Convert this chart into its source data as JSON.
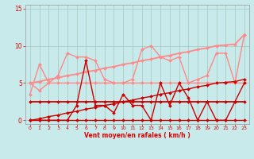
{
  "xlabel": "Vent moyen/en rafales ( km/h )",
  "xlim": [
    -0.5,
    23.5
  ],
  "ylim": [
    -0.5,
    15.5
  ],
  "yticks": [
    0,
    5,
    10,
    15
  ],
  "xticks": [
    0,
    1,
    2,
    3,
    4,
    5,
    6,
    7,
    8,
    9,
    10,
    11,
    12,
    13,
    14,
    15,
    16,
    17,
    18,
    19,
    20,
    21,
    22,
    23
  ],
  "bg_color": "#c8eaea",
  "grid_color": "#a0c8c0",
  "text_color": "#dd0000",
  "series": [
    {
      "x": [
        0,
        1,
        2,
        3,
        4,
        5,
        6,
        7,
        8,
        9,
        10,
        11,
        12,
        13,
        14,
        15,
        16,
        17,
        18,
        19,
        20,
        21,
        22,
        23
      ],
      "y": [
        0,
        0,
        0,
        0,
        0,
        0,
        0,
        0,
        0,
        0,
        0,
        0,
        0,
        0,
        0,
        0,
        0,
        0,
        0,
        0,
        0,
        0,
        0,
        0
      ],
      "color": "#cc0000",
      "linewidth": 1.0,
      "markersize": 2.0,
      "zorder": 3
    },
    {
      "x": [
        0,
        1,
        2,
        3,
        4,
        5,
        6,
        7,
        8,
        9,
        10,
        11,
        12,
        13,
        14,
        15,
        16,
        17,
        18,
        19,
        20,
        21,
        22,
        23
      ],
      "y": [
        2.5,
        2.5,
        2.5,
        2.5,
        2.5,
        2.5,
        2.5,
        2.5,
        2.5,
        2.5,
        2.5,
        2.5,
        2.5,
        2.5,
        2.5,
        2.5,
        2.5,
        2.5,
        2.5,
        2.5,
        2.5,
        2.5,
        2.5,
        2.5
      ],
      "color": "#cc0000",
      "linewidth": 1.3,
      "markersize": 2.0,
      "zorder": 3
    },
    {
      "x": [
        0,
        1,
        2,
        3,
        4,
        5,
        6,
        7,
        8,
        9,
        10,
        11,
        12,
        13,
        14,
        15,
        16,
        17,
        18,
        19,
        20,
        21,
        22,
        23
      ],
      "y": [
        0,
        0,
        0,
        0,
        0,
        2,
        8,
        2,
        2,
        1,
        3.5,
        2,
        2,
        0,
        5,
        2,
        5,
        3,
        0,
        2.5,
        0,
        0,
        2.5,
        5
      ],
      "color": "#cc0000",
      "linewidth": 1.0,
      "markersize": 2.0,
      "zorder": 3
    },
    {
      "x": [
        0,
        1,
        2,
        3,
        4,
        5,
        6,
        7,
        8,
        9,
        10,
        11,
        12,
        13,
        14,
        15,
        16,
        17,
        18,
        19,
        20,
        21,
        22,
        23
      ],
      "y": [
        0,
        0.2,
        0.5,
        0.7,
        1.0,
        1.2,
        1.5,
        1.7,
        2.0,
        2.2,
        2.5,
        2.7,
        3.0,
        3.2,
        3.5,
        3.7,
        4.0,
        4.2,
        4.5,
        4.7,
        5.0,
        5.1,
        5.2,
        5.5
      ],
      "color": "#cc0000",
      "linewidth": 1.0,
      "markersize": 2.0,
      "zorder": 3
    },
    {
      "x": [
        0,
        1,
        2,
        3,
        4,
        5,
        6,
        7,
        8,
        9,
        10,
        11,
        12,
        13,
        14,
        15,
        16,
        17,
        18,
        19,
        20,
        21,
        22,
        23
      ],
      "y": [
        5,
        4,
        5,
        5,
        5,
        5,
        5,
        5,
        5,
        5,
        5,
        5,
        5,
        5,
        5,
        5,
        5,
        5,
        5,
        5,
        5,
        5,
        5,
        5
      ],
      "color": "#ff8888",
      "linewidth": 1.0,
      "markersize": 2.0,
      "zorder": 2
    },
    {
      "x": [
        0,
        1,
        2,
        3,
        4,
        5,
        6,
        7,
        8,
        9,
        10,
        11,
        12,
        13,
        14,
        15,
        16,
        17,
        18,
        19,
        20,
        21,
        22,
        23
      ],
      "y": [
        3.5,
        7.5,
        5,
        6,
        9,
        8.5,
        8.5,
        8,
        5.5,
        5,
        5,
        5.5,
        9.5,
        10,
        8.5,
        8,
        8.5,
        5,
        5.5,
        6,
        9,
        9,
        5,
        11.5
      ],
      "color": "#ff8888",
      "linewidth": 1.0,
      "markersize": 2.0,
      "zorder": 2
    },
    {
      "x": [
        0,
        1,
        2,
        3,
        4,
        5,
        6,
        7,
        8,
        9,
        10,
        11,
        12,
        13,
        14,
        15,
        16,
        17,
        18,
        19,
        20,
        21,
        22,
        23
      ],
      "y": [
        5,
        5.2,
        5.5,
        5.7,
        6.0,
        6.2,
        6.5,
        6.7,
        7.0,
        7.2,
        7.5,
        7.7,
        8.0,
        8.2,
        8.5,
        8.7,
        9.0,
        9.2,
        9.5,
        9.7,
        10.0,
        10.1,
        10.2,
        11.5
      ],
      "color": "#ff8888",
      "linewidth": 1.3,
      "markersize": 2.0,
      "zorder": 2
    }
  ]
}
